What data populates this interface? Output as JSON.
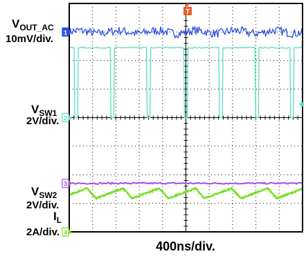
{
  "chart_data": {
    "type": "line",
    "title": "",
    "xlabel": "400ns/div.",
    "x_divisions": 10,
    "y_divisions": 8,
    "grid": true,
    "trigger_marker": "T",
    "colors": {
      "ch1": "#2f4fe0",
      "ch2": "#59dcc2",
      "ch3": "#a64be0",
      "ch4": "#74e01f",
      "trigger": "#f05a28",
      "grid": "#000000"
    },
    "series": [
      {
        "name": "VOUT_AC",
        "name_main": "V",
        "name_sub": "OUT_AC",
        "scale": "10mV/div.",
        "channel": "1",
        "level_div": 7.0,
        "waveform": "noisy-dc",
        "ripple_div": 0.15
      },
      {
        "name": "VSW1",
        "name_main": "V",
        "name_sub": "SW1",
        "scale": "2V/div.",
        "channel": "2",
        "level_div": 4.0,
        "waveform": "switching",
        "high_div": 2.45,
        "low_div": 0.0,
        "low_pulse_centers_div": [
          0.3,
          1.85,
          3.4,
          5.0,
          6.5,
          8.05,
          9.55
        ],
        "low_pulse_width_div": 0.18
      },
      {
        "name": "VSW2",
        "name_main": "V",
        "name_sub": "SW2",
        "scale": "2V/div.",
        "channel": "3",
        "level_div": 1.7,
        "waveform": "dc",
        "offset_div": 0.0
      },
      {
        "name": "IL",
        "name_main": "I",
        "name_sub": "L",
        "scale": "2A/div.",
        "channel": "4",
        "level_div": 0.0,
        "waveform": "triangle",
        "center_offset_div": 0.35,
        "peak_to_peak_div": 0.35,
        "period_div": 1.55
      }
    ]
  }
}
